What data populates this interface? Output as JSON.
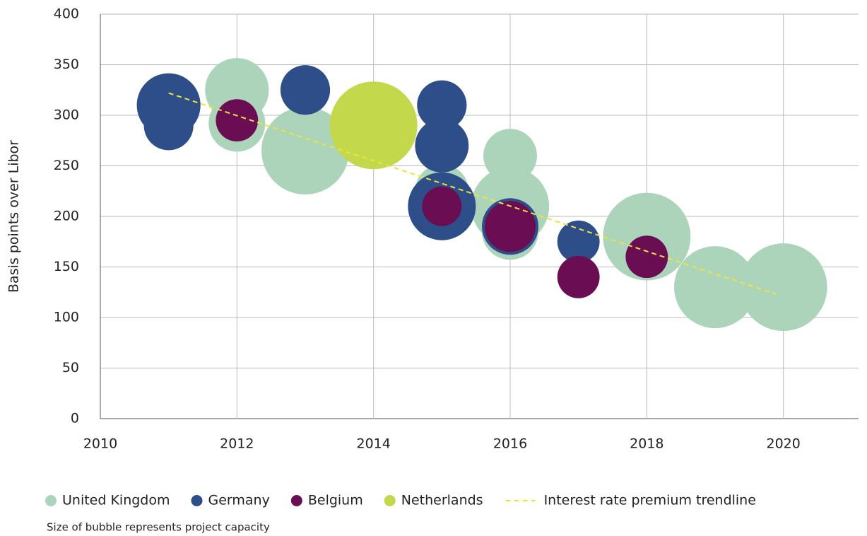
{
  "chart_data": {
    "type": "bubble",
    "y_label": "Basis points over Libor",
    "note": "Size of bubble represents project capacity",
    "xlim": [
      2010,
      2021.1
    ],
    "xticks": [
      2010,
      2012,
      2014,
      2016,
      2018,
      2020
    ],
    "ylim": [
      0,
      400
    ],
    "yticks": [
      0,
      50,
      100,
      150,
      200,
      250,
      300,
      350,
      400
    ],
    "grid": true,
    "legend": "bottom",
    "series": [
      {
        "name": "United Kingdom",
        "color": "#acd4bb",
        "x": [
          2012,
          2012,
          2013,
          2015,
          2016,
          2016,
          2016,
          2018,
          2019,
          2020
        ],
        "values": [
          325,
          292,
          265,
          225,
          260,
          210,
          185,
          180,
          130,
          130
        ],
        "sizes": [
          127,
          100,
          240,
          90,
          90,
          190,
          100,
          240,
          210,
          240
        ]
      },
      {
        "name": "Germany",
        "color": "#2d4e88",
        "x": [
          2011,
          2011,
          2013,
          2015,
          2015,
          2015,
          2016,
          2017
        ],
        "values": [
          310,
          290,
          325,
          310,
          270,
          210,
          190,
          175
        ],
        "sizes": [
          127,
          77,
          77,
          77,
          90,
          144,
          100,
          56
        ]
      },
      {
        "name": "Belgium",
        "color": "#6b0d52",
        "x": [
          2012,
          2015,
          2016,
          2017,
          2018
        ],
        "values": [
          295,
          210,
          190,
          140,
          160
        ],
        "sizes": [
          56,
          49,
          81,
          56,
          56
        ]
      },
      {
        "name": "Netherlands",
        "color": "#c3d94b",
        "x": [
          2014
        ],
        "values": [
          290
        ],
        "sizes": [
          240
        ]
      },
      {
        "name": "Interest rate premium trendline",
        "color": "#ece43c",
        "type": "trendline",
        "x": [
          2011,
          2019.9
        ],
        "values": [
          322,
          123
        ]
      }
    ]
  }
}
